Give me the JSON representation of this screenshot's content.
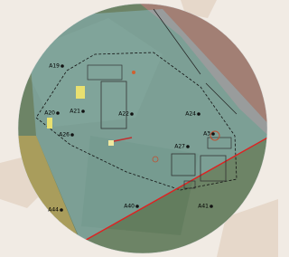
{
  "labels": [
    "A19",
    "A20",
    "A21",
    "A26",
    "A22",
    "A24",
    "A3",
    "A27",
    "A40",
    "A41",
    "A44"
  ]
}
